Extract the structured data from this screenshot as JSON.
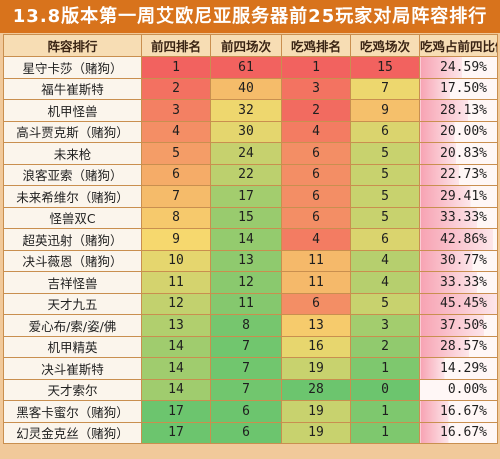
{
  "title": "13.8版本第一周艾欧尼亚服务器前25玩家对局阵容排行",
  "headers": [
    "阵容排行",
    "前四排名",
    "前四场次",
    "吃鸡排名",
    "吃鸡场次",
    "吃鸡占前四比例"
  ],
  "rows": [
    {
      "name": "星守卡莎（赌狗）",
      "top4_rank": "1",
      "top4_games": "61",
      "win_rank": "1",
      "win_games": "15",
      "ratio": "24.59%"
    },
    {
      "name": "福牛崔斯特",
      "top4_rank": "2",
      "top4_games": "40",
      "win_rank": "3",
      "win_games": "7",
      "ratio": "17.50%"
    },
    {
      "name": "机甲怪兽",
      "top4_rank": "3",
      "top4_games": "32",
      "win_rank": "2",
      "win_games": "9",
      "ratio": "28.13%"
    },
    {
      "name": "高斗贾克斯（赌狗）",
      "top4_rank": "4",
      "top4_games": "30",
      "win_rank": "4",
      "win_games": "6",
      "ratio": "20.00%"
    },
    {
      "name": "未来枪",
      "top4_rank": "5",
      "top4_games": "24",
      "win_rank": "6",
      "win_games": "5",
      "ratio": "20.83%"
    },
    {
      "name": "浪客亚索（赌狗）",
      "top4_rank": "6",
      "top4_games": "22",
      "win_rank": "6",
      "win_games": "5",
      "ratio": "22.73%"
    },
    {
      "name": "未来希维尔（赌狗）",
      "top4_rank": "7",
      "top4_games": "17",
      "win_rank": "6",
      "win_games": "5",
      "ratio": "29.41%"
    },
    {
      "name": "怪兽双C",
      "top4_rank": "8",
      "top4_games": "15",
      "win_rank": "6",
      "win_games": "5",
      "ratio": "33.33%"
    },
    {
      "name": "超英迅射（赌狗）",
      "top4_rank": "9",
      "top4_games": "14",
      "win_rank": "4",
      "win_games": "6",
      "ratio": "42.86%"
    },
    {
      "name": "决斗薇恩（赌狗）",
      "top4_rank": "10",
      "top4_games": "13",
      "win_rank": "11",
      "win_games": "4",
      "ratio": "30.77%"
    },
    {
      "name": "吉祥怪兽",
      "top4_rank": "11",
      "top4_games": "12",
      "win_rank": "11",
      "win_games": "4",
      "ratio": "33.33%"
    },
    {
      "name": "天才九五",
      "top4_rank": "12",
      "top4_games": "11",
      "win_rank": "6",
      "win_games": "5",
      "ratio": "45.45%"
    },
    {
      "name": "爱心布/索/姿/佛",
      "top4_rank": "13",
      "top4_games": "8",
      "win_rank": "13",
      "win_games": "3",
      "ratio": "37.50%"
    },
    {
      "name": "机甲精英",
      "top4_rank": "14",
      "top4_games": "7",
      "win_rank": "16",
      "win_games": "2",
      "ratio": "28.57%"
    },
    {
      "name": "决斗崔斯特",
      "top4_rank": "14",
      "top4_games": "7",
      "win_rank": "19",
      "win_games": "1",
      "ratio": "14.29%"
    },
    {
      "name": "天才索尔",
      "top4_rank": "14",
      "top4_games": "7",
      "win_rank": "28",
      "win_games": "0",
      "ratio": "0.00%"
    },
    {
      "name": "黑客卡蜜尔（赌狗）",
      "top4_rank": "17",
      "top4_games": "6",
      "win_rank": "19",
      "win_games": "1",
      "ratio": "16.67%"
    },
    {
      "name": "幻灵金克丝（赌狗）",
      "top4_rank": "17",
      "top4_games": "6",
      "win_rank": "19",
      "win_games": "1",
      "ratio": "16.67%"
    }
  ],
  "colors": {
    "title_bg": "#d8731c",
    "header_bg": "#f7ddb4",
    "name_bg": "#fbf5ec",
    "border": "#c98f4f",
    "ratio_bar": "#f7a3b3",
    "gradient_low": "#f2625f",
    "gradient_mid": "#f6d86e",
    "gradient_high": "#6cc56e"
  }
}
